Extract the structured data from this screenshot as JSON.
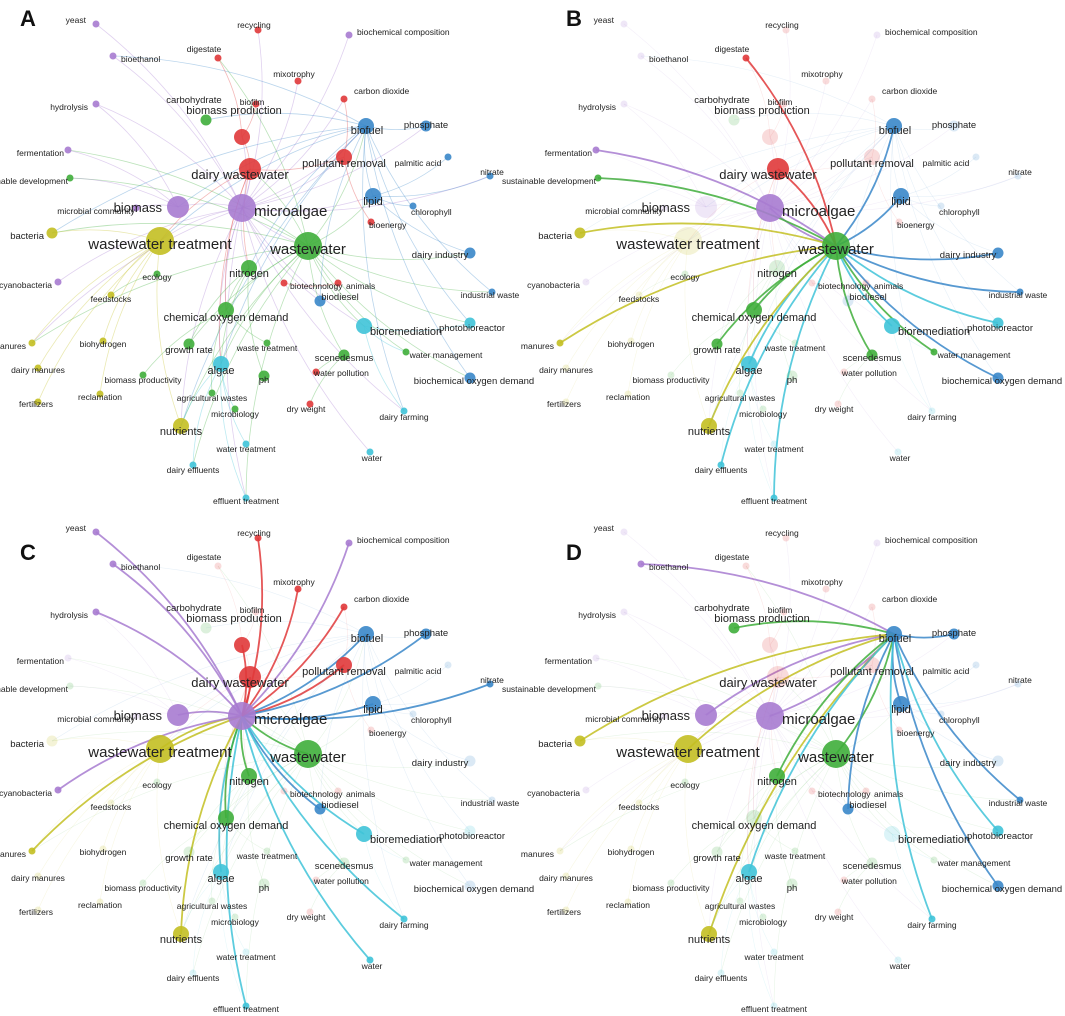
{
  "colors": {
    "red": "#e0383a",
    "green": "#3fae3b",
    "blue": "#3a87c9",
    "yellow": "#c3bf22",
    "purple": "#a77bd0",
    "cyan": "#3fc3d8"
  },
  "panels": [
    {
      "letter": "A",
      "focus": null
    },
    {
      "letter": "B",
      "focus": "wastewater"
    },
    {
      "letter": "C",
      "focus": "microalgae"
    },
    {
      "letter": "D",
      "focus": "biofuel"
    }
  ],
  "nodes": [
    {
      "id": "yeast",
      "label": "yeast",
      "cluster": "purple",
      "size": 1
    },
    {
      "id": "bioethanol",
      "label": "bioethanol",
      "cluster": "purple",
      "size": 1
    },
    {
      "id": "hydrolysis",
      "label": "hydrolysis",
      "cluster": "purple",
      "size": 1
    },
    {
      "id": "fermentation",
      "label": "fermentation",
      "cluster": "purple",
      "size": 1
    },
    {
      "id": "microbial_community",
      "label": "microbial community",
      "cluster": "purple",
      "size": 1
    },
    {
      "id": "cyanobacteria",
      "label": "cyanobacteria",
      "cluster": "purple",
      "size": 1
    },
    {
      "id": "microalgae",
      "label": "microalgae",
      "cluster": "purple",
      "size": 5
    },
    {
      "id": "biomass",
      "label": "biomass",
      "cluster": "purple",
      "size": 4
    },
    {
      "id": "digestate",
      "label": "digestate",
      "cluster": "red",
      "size": 1
    },
    {
      "id": "recycling",
      "label": "recycling",
      "cluster": "red",
      "size": 1
    },
    {
      "id": "biochemical_composition",
      "label": "biochemical composition",
      "cluster": "purple",
      "size": 1
    },
    {
      "id": "mixotrophy",
      "label": "mixotrophy",
      "cluster": "red",
      "size": 1
    },
    {
      "id": "carbon_dioxide",
      "label": "carbon dioxide",
      "cluster": "red",
      "size": 1
    },
    {
      "id": "biofilm",
      "label": "biofilm",
      "cluster": "red",
      "size": 1
    },
    {
      "id": "carbohydrate",
      "label": "carbohydrate",
      "cluster": "green",
      "size": 2
    },
    {
      "id": "biomass_production",
      "label": "biomass production",
      "cluster": "red",
      "size": 3
    },
    {
      "id": "pollutant_removal",
      "label": "pollutant removal",
      "cluster": "red",
      "size": 3
    },
    {
      "id": "dairy_wastewater",
      "label": "dairy wastewater",
      "cluster": "red",
      "size": 4
    },
    {
      "id": "wastewater",
      "label": "wastewater",
      "cluster": "green",
      "size": 5
    },
    {
      "id": "bioenergy",
      "label": "bioenergy",
      "cluster": "red",
      "size": 1
    },
    {
      "id": "animals",
      "label": "animals",
      "cluster": "red",
      "size": 1
    },
    {
      "id": "biotechnology",
      "label": "biotechnology",
      "cluster": "red",
      "size": 1
    },
    {
      "id": "dry_weight",
      "label": "dry weight",
      "cluster": "red",
      "size": 1
    },
    {
      "id": "water_pollution",
      "label": "water pollution",
      "cluster": "red",
      "size": 1
    },
    {
      "id": "biofuel",
      "label": "biofuel",
      "cluster": "blue",
      "size": 3
    },
    {
      "id": "phosphate",
      "label": "phosphate",
      "cluster": "blue",
      "size": 2
    },
    {
      "id": "palmitic_acid",
      "label": "palmitic acid",
      "cluster": "blue",
      "size": 1
    },
    {
      "id": "lipid",
      "label": "lipid",
      "cluster": "blue",
      "size": 3
    },
    {
      "id": "chlorophyll",
      "label": "chlorophyll",
      "cluster": "blue",
      "size": 1
    },
    {
      "id": "nitrate",
      "label": "nitrate",
      "cluster": "blue",
      "size": 1
    },
    {
      "id": "dairy_industry",
      "label": "dairy industry",
      "cluster": "blue",
      "size": 2
    },
    {
      "id": "industrial_waste",
      "label": "industrial waste",
      "cluster": "blue",
      "size": 1
    },
    {
      "id": "biodiesel",
      "label": "biodiesel",
      "cluster": "blue",
      "size": 2
    },
    {
      "id": "biochemical_oxygen_demand",
      "label": "biochemical oxygen demand",
      "cluster": "blue",
      "size": 2
    },
    {
      "id": "photobioreactor",
      "label": "photobioreactor",
      "cluster": "cyan",
      "size": 2
    },
    {
      "id": "bioremediation",
      "label": "bioremediation",
      "cluster": "cyan",
      "size": 3
    },
    {
      "id": "algae",
      "label": "algae",
      "cluster": "cyan",
      "size": 3
    },
    {
      "id": "water_management",
      "label": "water management",
      "cluster": "green",
      "size": 1
    },
    {
      "id": "dairy_farming",
      "label": "dairy farming",
      "cluster": "cyan",
      "size": 1
    },
    {
      "id": "water",
      "label": "water",
      "cluster": "cyan",
      "size": 1
    },
    {
      "id": "effluent_treatment",
      "label": "effluent treatment",
      "cluster": "cyan",
      "size": 1
    },
    {
      "id": "water_treatment",
      "label": "water treatment",
      "cluster": "cyan",
      "size": 1
    },
    {
      "id": "dairy_effluents",
      "label": "dairy effluents",
      "cluster": "cyan",
      "size": 1
    },
    {
      "id": "microbiology",
      "label": "microbiology",
      "cluster": "green",
      "size": 1
    },
    {
      "id": "agricultural_wastes",
      "label": "agricultural wastes",
      "cluster": "green",
      "size": 1
    },
    {
      "id": "biomass_productivity",
      "label": "biomass productivity",
      "cluster": "green",
      "size": 1
    },
    {
      "id": "growth_rate",
      "label": "growth rate",
      "cluster": "green",
      "size": 2
    },
    {
      "id": "waste_treatment",
      "label": "waste treatment",
      "cluster": "green",
      "size": 1
    },
    {
      "id": "ph",
      "label": "ph",
      "cluster": "green",
      "size": 2
    },
    {
      "id": "scenedesmus",
      "label": "scenedesmus",
      "cluster": "green",
      "size": 2
    },
    {
      "id": "nitrogen",
      "label": "nitrogen",
      "cluster": "green",
      "size": 3
    },
    {
      "id": "chemical_oxygen_demand",
      "label": "chemical oxygen demand",
      "cluster": "green",
      "size": 3
    },
    {
      "id": "ecology",
      "label": "ecology",
      "cluster": "green",
      "size": 1
    },
    {
      "id": "sustainable_development",
      "label": "sustainable development",
      "cluster": "green",
      "size": 1
    },
    {
      "id": "wastewater_treatment",
      "label": "wastewater treatment",
      "cluster": "yellow",
      "size": 5
    },
    {
      "id": "bacteria",
      "label": "bacteria",
      "cluster": "yellow",
      "size": 2
    },
    {
      "id": "feedstocks",
      "label": "feedstocks",
      "cluster": "yellow",
      "size": 1
    },
    {
      "id": "biohydrogen",
      "label": "biohydrogen",
      "cluster": "yellow",
      "size": 1
    },
    {
      "id": "manures",
      "label": "manures",
      "cluster": "yellow",
      "size": 1
    },
    {
      "id": "dairy_manures",
      "label": "dairy manures",
      "cluster": "yellow",
      "size": 1
    },
    {
      "id": "fertilizers",
      "label": "fertilizers",
      "cluster": "yellow",
      "size": 1
    },
    {
      "id": "reclamation",
      "label": "reclamation",
      "cluster": "yellow",
      "size": 1
    },
    {
      "id": "nutrients",
      "label": "nutrients",
      "cluster": "yellow",
      "size": 3
    }
  ]
}
